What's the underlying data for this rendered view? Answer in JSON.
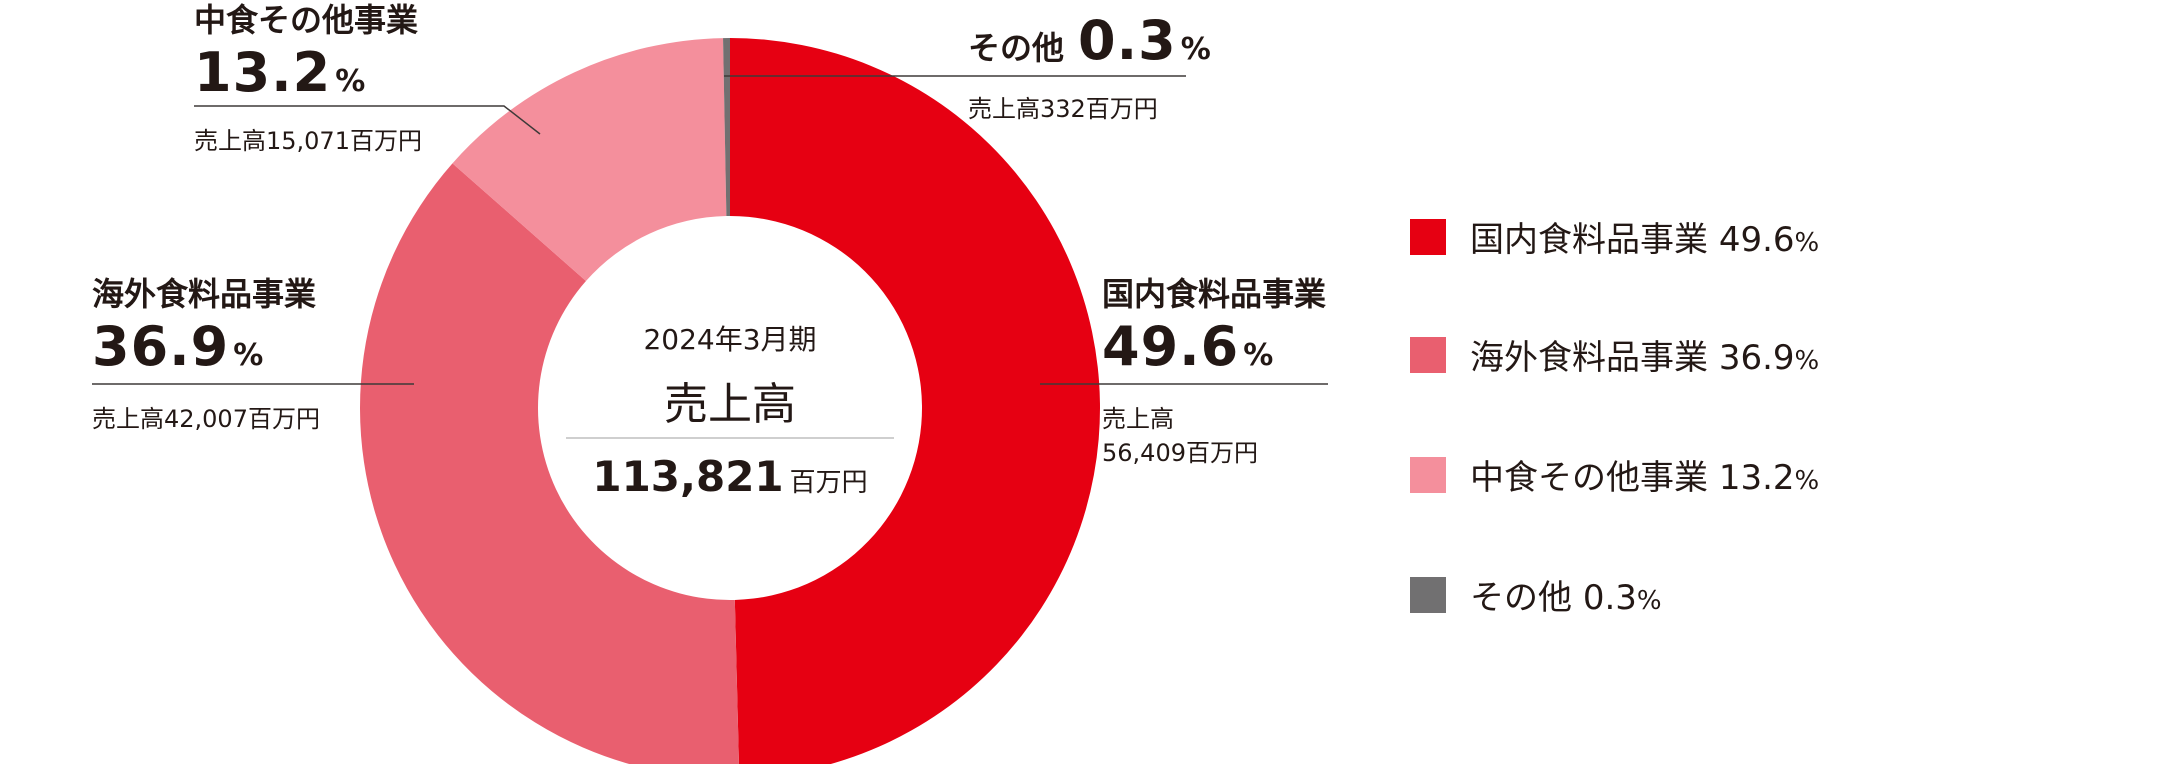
{
  "chart_data": {
    "type": "pie",
    "categories": [
      "国内食料品事業",
      "海外食料品事業",
      "中食その他事業",
      "その他"
    ],
    "values": [
      49.6,
      36.9,
      13.2,
      0.3
    ],
    "colors": [
      "#e60012",
      "#e95f6f",
      "#f48f9c",
      "#717071"
    ],
    "labels": {
      "domestic": {
        "name": "国内食料品事業",
        "pct": "49.6",
        "unit": "%",
        "sub1": "売上高",
        "sub2": "56,409百万円"
      },
      "overseas": {
        "name": "海外食料品事業",
        "pct": "36.9",
        "unit": "%",
        "sub1": "売上高42,007百万円"
      },
      "nakashoku": {
        "name": "中食その他事業",
        "pct": "13.2",
        "unit": "%",
        "sub1": "売上高15,071百万円"
      },
      "other": {
        "name": "その他",
        "pct": "0.3",
        "unit": "%",
        "sub1": "売上高332百万円"
      }
    },
    "center": {
      "period": "2024年3月期",
      "title": "売上高",
      "total": "113,821",
      "unit": "百万円"
    },
    "legend": [
      {
        "name": "国内食料品事業",
        "pct": "49.6",
        "unit": "%"
      },
      {
        "name": "海外食料品事業",
        "pct": "36.9",
        "unit": "%"
      },
      {
        "name": "中食その他事業",
        "pct": "13.2",
        "unit": "%"
      },
      {
        "name": "その他",
        "pct": "0.3",
        "unit": "%"
      }
    ]
  }
}
